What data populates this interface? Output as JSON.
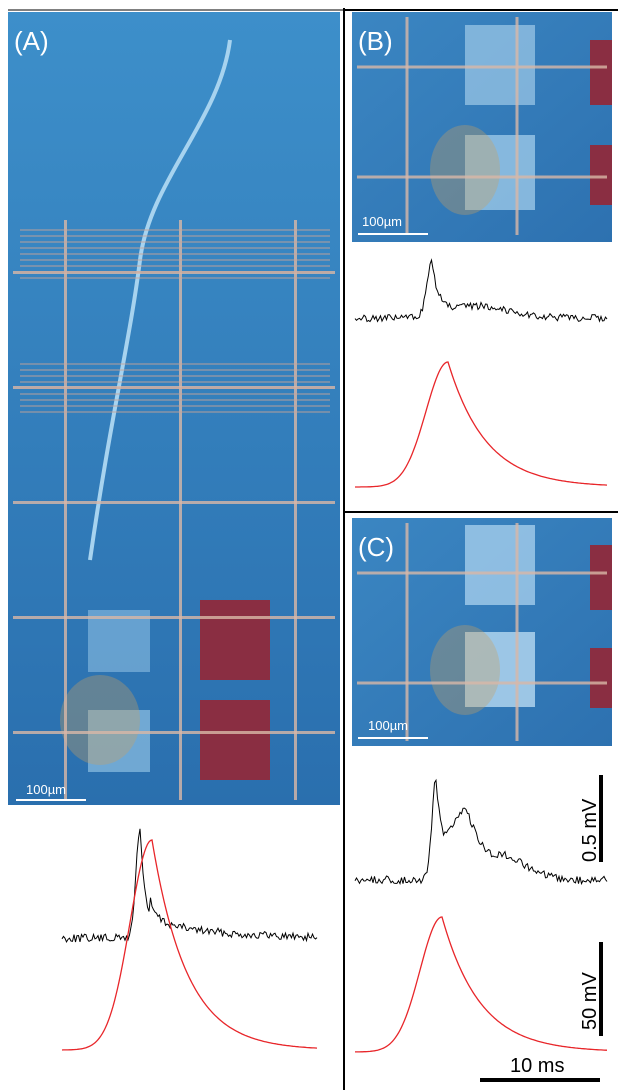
{
  "panels": [
    {
      "label": "(A)",
      "scale_bar": "100µm"
    },
    {
      "label": "(B)",
      "scale_bar": "100µm"
    },
    {
      "label": "(C)",
      "scale_bar": "100µm",
      "scale_voltage_small": "0.5 mV",
      "scale_voltage_large": "50 mV",
      "scale_time": "10 ms"
    }
  ]
}
